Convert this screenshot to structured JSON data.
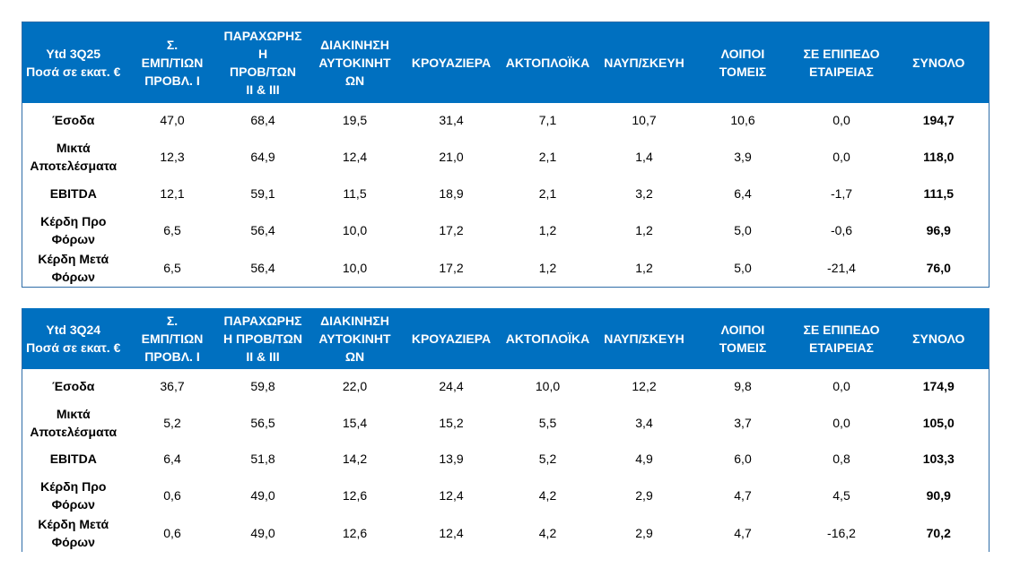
{
  "tables": [
    {
      "headers": [
        "Ytd 3Q25\nΠοσά σε εκατ. €",
        "Σ.\nΕΜΠ/ΤΙΩΝ\nΠΡΟΒΛ. Ι",
        "ΠΑΡΑΧΩΡΗΣ\nΗ\nΠΡΟΒ/ΤΩΝ\nΙΙ & ΙΙΙ",
        "ΔΙΑΚΙΝΗΣΗ\nΑΥΤΟΚΙΝΗΤ\nΩΝ",
        "ΚΡΟΥΑΖΙΕΡΑ",
        "ΑΚΤΟΠΛΟΪΚΑ",
        "ΝΑΥΠ/ΣΚΕΥΗ",
        "ΛΟΙΠΟΙ\nΤΟΜΕΙΣ",
        "ΣΕ ΕΠΙΠΕΔΟ\nΕΤΑΙΡΕΙΑΣ",
        "ΣΥΝΟΛΟ"
      ],
      "rows": [
        [
          "Έσοδα",
          "47,0",
          "68,4",
          "19,5",
          "31,4",
          "7,1",
          "10,7",
          "10,6",
          "0,0",
          "194,7"
        ],
        [
          "Μικτά\nΑποτελέσματα",
          "12,3",
          "64,9",
          "12,4",
          "21,0",
          "2,1",
          "1,4",
          "3,9",
          "0,0",
          "118,0"
        ],
        [
          "EBITDA",
          "12,1",
          "59,1",
          "11,5",
          "18,9",
          "2,1",
          "3,2",
          "6,4",
          "-1,7",
          "111,5"
        ],
        [
          "Κέρδη Προ\nΦόρων",
          "6,5",
          "56,4",
          "10,0",
          "17,2",
          "1,2",
          "1,2",
          "5,0",
          "-0,6",
          "96,9"
        ],
        [
          "Κέρδη Μετά\nΦόρων",
          "6,5",
          "56,4",
          "10,0",
          "17,2",
          "1,2",
          "1,2",
          "5,0",
          "-21,4",
          "76,0"
        ]
      ]
    },
    {
      "headers": [
        "Ytd 3Q24\nΠοσά σε εκατ. €",
        "Σ.\nΕΜΠ/ΤΙΩΝ\nΠΡΟΒΛ. Ι",
        "ΠΑΡΑΧΩΡΗΣ\nΗ ΠΡΟΒ/ΤΩΝ\nΙΙ & ΙΙΙ",
        "ΔΙΑΚΙΝΗΣΗ\nΑΥΤΟΚΙΝΗΤ\nΩΝ",
        "ΚΡΟΥΑΖΙΕΡΑ",
        "ΑΚΤΟΠΛΟΪΚΑ",
        "ΝΑΥΠ/ΣΚΕΥΗ",
        "ΛΟΙΠΟΙ\nΤΟΜΕΙΣ",
        "ΣΕ ΕΠΙΠΕΔΟ\nΕΤΑΙΡΕΙΑΣ",
        "ΣΥΝΟΛΟ"
      ],
      "rows": [
        [
          "Έσοδα",
          "36,7",
          "59,8",
          "22,0",
          "24,4",
          "10,0",
          "12,2",
          "9,8",
          "0,0",
          "174,9"
        ],
        [
          "Μικτά\nΑποτελέσματα",
          "5,2",
          "56,5",
          "15,4",
          "15,2",
          "5,5",
          "3,4",
          "3,7",
          "0,0",
          "105,0"
        ],
        [
          "EBITDA",
          "6,4",
          "51,8",
          "14,2",
          "13,9",
          "5,2",
          "4,9",
          "6,0",
          "0,8",
          "103,3"
        ],
        [
          "Κέρδη Προ\nΦόρων",
          "0,6",
          "49,0",
          "12,6",
          "12,4",
          "4,2",
          "2,9",
          "4,7",
          "4,5",
          "90,9"
        ],
        [
          "Κέρδη Μετά\nΦόρων",
          "0,6",
          "49,0",
          "12,6",
          "12,4",
          "4,2",
          "2,9",
          "4,7",
          "-16,2",
          "70,2"
        ]
      ]
    }
  ],
  "colors": {
    "header_bg": "#0070C0",
    "header_text": "#FFFFFF",
    "border": "#2F6DA8"
  }
}
